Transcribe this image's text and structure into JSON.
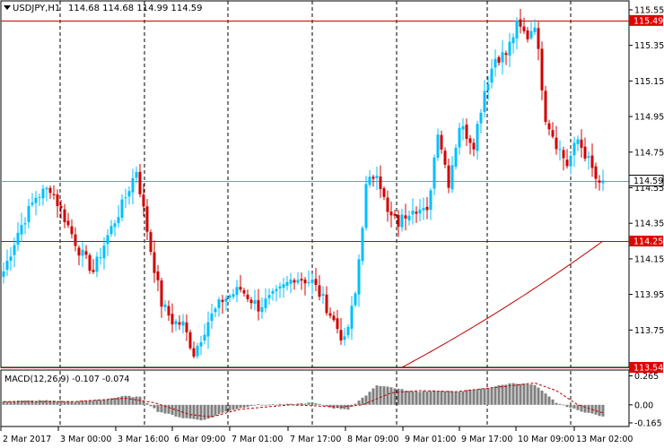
{
  "symbol": "USDJPY,H1",
  "ohlc_text": "114.68 114.68 114.99 114.59",
  "colors": {
    "bull": "#00bfff",
    "bear": "#d00000",
    "hline": "#d00000",
    "level_label_bg": "#e00000",
    "current_line": "#7a9bb5",
    "current_label_bg": "#ffffff",
    "ma_line": "#c00000",
    "macd_hist": "#808080",
    "macd_signal": "#c00000"
  },
  "chart_data": {
    "type": "candlestick",
    "price_axis": {
      "ylim": [
        113.54,
        115.6
      ],
      "ticks": [
        "115.55",
        "115.35",
        "115.15",
        "114.95",
        "114.75",
        "114.55",
        "114.35",
        "114.15",
        "113.95",
        "113.75"
      ]
    },
    "levels": [
      {
        "value": 115.49,
        "label": "115.49"
      },
      {
        "value": 114.25,
        "label": "114.25"
      },
      {
        "value": 113.54,
        "label": "113.54"
      }
    ],
    "current_price": {
      "value": 114.59,
      "label": "114.59"
    },
    "x_labels": [
      "2 Mar 2017",
      "3 Mar 00:00",
      "3 Mar 16:00",
      "6 Mar 09:00",
      "7 Mar 01:00",
      "7 Mar 17:00",
      "8 Mar 09:00",
      "9 Mar 01:00",
      "9 Mar 17:00",
      "10 Mar 09:00",
      "13 Mar 02:00"
    ],
    "anchors": [
      [
        0,
        114.08
      ],
      [
        4,
        114.3
      ],
      [
        9,
        114.5
      ],
      [
        13,
        114.55
      ],
      [
        17,
        114.38
      ],
      [
        21,
        114.2
      ],
      [
        25,
        114.08
      ],
      [
        29,
        114.28
      ],
      [
        33,
        114.45
      ],
      [
        37,
        114.65
      ],
      [
        41,
        114.2
      ],
      [
        44,
        113.9
      ],
      [
        47,
        113.8
      ],
      [
        50,
        113.78
      ],
      [
        53,
        113.62
      ],
      [
        57,
        113.8
      ],
      [
        61,
        113.92
      ],
      [
        66,
        113.98
      ],
      [
        71,
        113.88
      ],
      [
        76,
        113.95
      ],
      [
        81,
        114.05
      ],
      [
        86,
        114.02
      ],
      [
        89,
        113.92
      ],
      [
        92,
        113.8
      ],
      [
        95,
        113.68
      ],
      [
        98,
        113.95
      ],
      [
        101,
        114.55
      ],
      [
        104,
        114.65
      ],
      [
        107,
        114.4
      ],
      [
        110,
        114.35
      ],
      [
        114,
        114.45
      ],
      [
        118,
        114.4
      ],
      [
        121,
        114.88
      ],
      [
        124,
        114.58
      ],
      [
        127,
        114.9
      ],
      [
        131,
        114.8
      ],
      [
        134,
        115.1
      ],
      [
        137,
        115.28
      ],
      [
        140,
        115.3
      ],
      [
        143,
        115.46
      ],
      [
        146,
        115.4
      ],
      [
        148,
        115.48
      ],
      [
        151,
        114.95
      ],
      [
        154,
        114.8
      ],
      [
        157,
        114.68
      ],
      [
        160,
        114.82
      ],
      [
        163,
        114.7
      ],
      [
        166,
        114.55
      ],
      [
        167,
        114.59
      ]
    ],
    "ma": {
      "start_value": 113.54,
      "end_value": 114.25
    },
    "macd": {
      "label": "MACD(12,26,9) -0.107 -0.074",
      "ylim": [
        -0.19,
        0.31
      ],
      "ticks": [
        "0.265",
        "0.00",
        "-0.165"
      ],
      "hist_anchors": [
        [
          0,
          0.035
        ],
        [
          12,
          0.04
        ],
        [
          20,
          0.03
        ],
        [
          28,
          0.05
        ],
        [
          34,
          0.08
        ],
        [
          38,
          0.07
        ],
        [
          43,
          -0.06
        ],
        [
          50,
          -0.12
        ],
        [
          56,
          -0.14
        ],
        [
          62,
          -0.06
        ],
        [
          70,
          0.0
        ],
        [
          80,
          0.005
        ],
        [
          86,
          0.02
        ],
        [
          92,
          -0.03
        ],
        [
          96,
          -0.04
        ],
        [
          100,
          0.06
        ],
        [
          104,
          0.18
        ],
        [
          108,
          0.16
        ],
        [
          114,
          0.12
        ],
        [
          120,
          0.13
        ],
        [
          126,
          0.12
        ],
        [
          134,
          0.15
        ],
        [
          142,
          0.2
        ],
        [
          148,
          0.18
        ],
        [
          154,
          0.02
        ],
        [
          160,
          -0.05
        ],
        [
          167,
          -0.107
        ]
      ],
      "signal_anchors": [
        [
          0,
          0.03
        ],
        [
          20,
          0.03
        ],
        [
          34,
          0.06
        ],
        [
          42,
          0.02
        ],
        [
          52,
          -0.09
        ],
        [
          58,
          -0.11
        ],
        [
          66,
          -0.04
        ],
        [
          80,
          0.0
        ],
        [
          94,
          -0.02
        ],
        [
          100,
          0.0
        ],
        [
          108,
          0.11
        ],
        [
          116,
          0.13
        ],
        [
          126,
          0.12
        ],
        [
          140,
          0.17
        ],
        [
          148,
          0.2
        ],
        [
          154,
          0.13
        ],
        [
          160,
          0.0
        ],
        [
          167,
          -0.074
        ]
      ]
    }
  }
}
